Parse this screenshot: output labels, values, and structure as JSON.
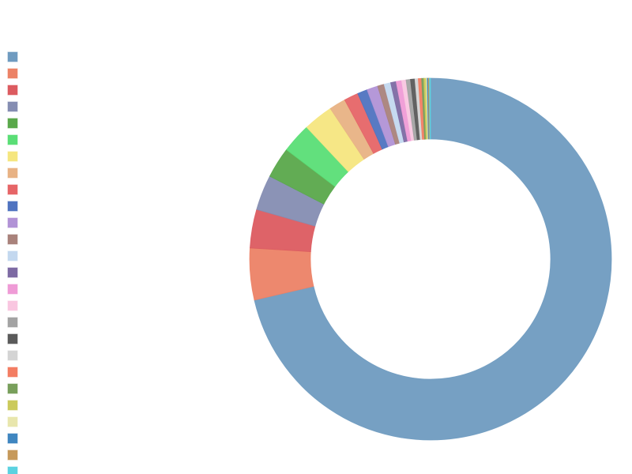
{
  "chart_data": {
    "type": "donut",
    "values": [
      72.5,
      4.7,
      3.5,
      3.2,
      2.8,
      2.7,
      2.7,
      1.5,
      1.3,
      0.9,
      1.0,
      0.6,
      0.6,
      0.5,
      0.5,
      0.4,
      0.4,
      0.4,
      0.3,
      0.3,
      0.2,
      0.2,
      0.1,
      0.1,
      0.1,
      0.1
    ],
    "colors": [
      "#6f9bc0",
      "#ec8266",
      "#dc5b60",
      "#858db2",
      "#5aa84b",
      "#5ade76",
      "#f5e67f",
      "#e8b284",
      "#e66567",
      "#4f73c0",
      "#b192d6",
      "#a9827b",
      "#c3d8ef",
      "#7d6aa3",
      "#ef9bd6",
      "#f9c6e0",
      "#a3a3a3",
      "#5a5a5a",
      "#d4d4d4",
      "#f37d63",
      "#789f5b",
      "#cbca5b",
      "#e8e6ad",
      "#3f86c0",
      "#c6995a",
      "#5bd2e0"
    ],
    "legend": "left"
  }
}
